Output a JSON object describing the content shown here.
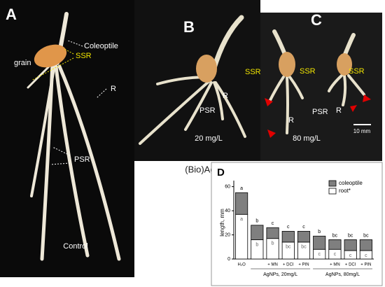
{
  "panels": {
    "a": {
      "letter": "A",
      "grain": "grain",
      "coleoptile": "Coleoptile",
      "ssr": "SSR",
      "r": "R",
      "psr": "PSR",
      "caption": "Control"
    },
    "b": {
      "letter": "B",
      "ssr": "SSR",
      "r": "R",
      "psr": "PSR",
      "caption": "20 mg/L"
    },
    "c": {
      "letter": "C",
      "ssr1": "SSR",
      "ssr2": "SSR",
      "psr": "PSR",
      "r1": "R",
      "r2": "R",
      "caption": "80 mg/L",
      "scale": "10 mm"
    },
    "treatment": "(Bio)Ag NPs"
  },
  "chart_data": {
    "type": "stacked-bar",
    "panel_label": "D",
    "ylabel": "length, mm",
    "categories": [
      "H₂O",
      null,
      "+ MN",
      "+ DCI",
      "+ PIN",
      null,
      "+ MN",
      "+ DCI",
      "+ PIN"
    ],
    "groups": [
      "AgNPs, 20mg/L",
      "AgNPs, 80mg/L"
    ],
    "series": [
      {
        "name": "root*",
        "color": "#ffffff",
        "values": [
          37,
          16,
          17,
          14,
          14,
          8,
          8,
          7,
          7
        ],
        "letters": [
          "a",
          "b",
          "b",
          "bc",
          "bc",
          "c",
          "c",
          "c",
          "c"
        ]
      },
      {
        "name": "coleoptile",
        "color": "#7f7f7f",
        "values": [
          18,
          12,
          9,
          9,
          9,
          11,
          8,
          9,
          9
        ],
        "letters": [
          "a",
          "b",
          "c",
          "c",
          "c",
          "b",
          "bc",
          "bc",
          "bc"
        ]
      }
    ],
    "ylim": [
      0,
      65
    ],
    "yticks": [
      0,
      20,
      40,
      60
    ],
    "legend": "upper right"
  }
}
